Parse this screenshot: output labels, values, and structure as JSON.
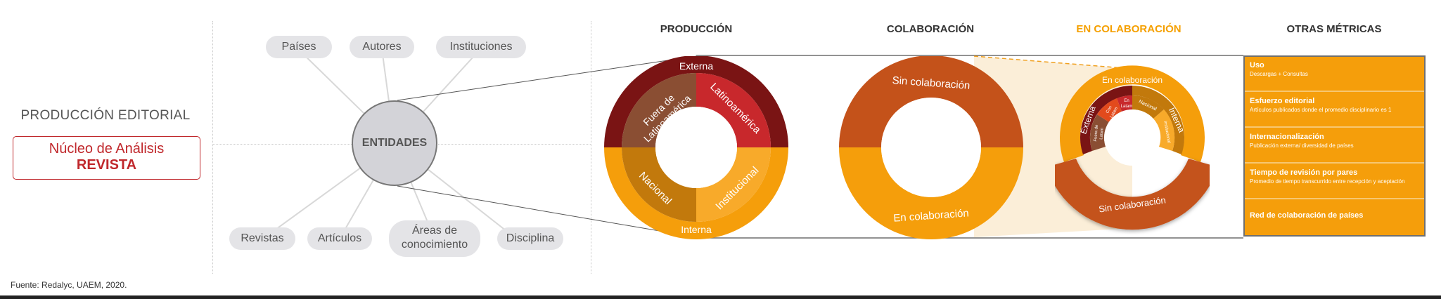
{
  "left": {
    "title": "PRODUCCIÓN EDITORIAL",
    "box_line1": "Núcleo de Análisis",
    "box_line2": "REVISTA"
  },
  "entities": {
    "center": "ENTIDADES",
    "paises": "Países",
    "autores": "Autores",
    "instituciones": "Instituciones",
    "revistas": "Revistas",
    "articulos": "Artículos",
    "areas_l1": "Áreas de",
    "areas_l2": "conocimiento",
    "disciplina": "Disciplina"
  },
  "headers": {
    "produccion": "PRODUCCIÓN",
    "colaboracion": "COLABORACIÓN",
    "en_colaboracion": "EN COLABORACIÓN",
    "otras": "OTRAS MÉTRICAS"
  },
  "donut1": {
    "externa": "Externa",
    "interna": "Interna",
    "fuera_l1": "Fuera de",
    "fuera_l2": "Latinoamérica",
    "latam": "Latinoamérica",
    "nacional": "Nacional",
    "institucional": "Institucional"
  },
  "donut2": {
    "sin": "Sin colaboración",
    "en": "En colaboración"
  },
  "donut3": {
    "en_colab": "En colaboración",
    "externa": "Externa",
    "interna": "Interna",
    "sin": "Sin colaboración",
    "en_latam_l1": "En",
    "en_latam_l2": "Latam",
    "con_latam_l1": "Con",
    "con_latam_l2": "Latam",
    "fuera_latam_l1": "Fuera de",
    "fuera_latam_l2": "Latam",
    "nacional": "Nacional",
    "institucional": "Institucional"
  },
  "metrics": [
    {
      "title": "Uso",
      "desc": "Descargas + Consultas"
    },
    {
      "title": "Esfuerzo editorial",
      "desc": "Artículos publicados donde el promedio disciplinario es 1"
    },
    {
      "title": "Internacionalización",
      "desc": "Publicación externa/ diversidad de países"
    },
    {
      "title": "Tiempo de revisión por pares",
      "desc": "Promedio de tiempo transcurrido entre recepción y aceptación"
    },
    {
      "title": "Red de colaboración de países",
      "desc": ""
    }
  ],
  "source": "Fuente: Redalyc, UAEM, 2020.",
  "colors": {
    "dark_red": "#7a1414",
    "red": "#c8282c",
    "brown": "#8a4e33",
    "orange": "#f59e0b",
    "dark_orange": "#c2790c",
    "burnt": "#c4521a",
    "light_orange": "#f8aa2a",
    "accent_header": "#f5a000"
  }
}
